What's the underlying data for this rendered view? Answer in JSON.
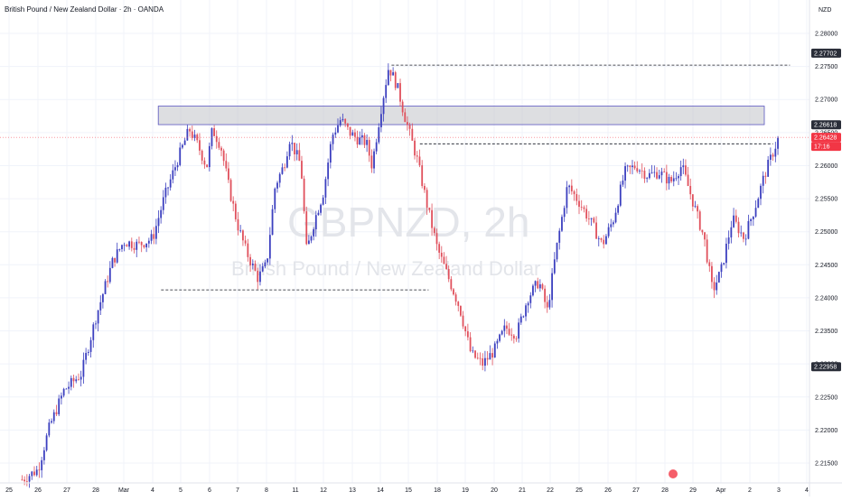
{
  "header": {
    "title": "British Pound / New Zealand Dollar · 2h · OANDA",
    "currency": "NZD"
  },
  "watermark": {
    "symbol": "GBPNZD, 2h",
    "name": "British Pound / New Zealand Dollar"
  },
  "colors": {
    "up": "#3b3fbf",
    "down": "#e0505c",
    "box_purple": "#7b74d0",
    "box_grey": "#bcbec4",
    "zone_grey": "#c9cbd1",
    "last_price": "#f23645",
    "tag_dark": "#131722"
  },
  "price_tags": {
    "box_top": "2.27702",
    "zone_bottom": "2.26618",
    "last_price": "2.26428",
    "countdown": "17:16",
    "box_bottom": "2.22958"
  },
  "chart_data": {
    "type": "candlestick",
    "title": "British Pound / New Zealand Dollar · 2h · OANDA",
    "y_axis": {
      "ylim": [
        2.2105,
        2.2855
      ],
      "ticks": [
        "2.28000",
        "2.27500",
        "2.27000",
        "2.26500",
        "2.26000",
        "2.25500",
        "2.25000",
        "2.24500",
        "2.24000",
        "2.23500",
        "2.23000",
        "2.22500",
        "2.22000",
        "2.21500"
      ]
    },
    "x_axis": {
      "ticks": [
        "25",
        "26",
        "27",
        "28",
        "Mar",
        "4",
        "5",
        "6",
        "7",
        "8",
        "11",
        "12",
        "13",
        "14",
        "15",
        "18",
        "19",
        "20",
        "21",
        "22",
        "25",
        "26",
        "27",
        "28",
        "29",
        "Apr",
        "2",
        "3",
        "4"
      ]
    },
    "price_path": [
      [
        0.45,
        2.2125
      ],
      [
        1.0,
        2.214
      ],
      [
        1.4,
        2.2205
      ],
      [
        1.9,
        2.226
      ],
      [
        2.5,
        2.2285
      ],
      [
        3.0,
        2.237
      ],
      [
        3.6,
        2.2455
      ],
      [
        4.0,
        2.2485
      ],
      [
        4.5,
        2.248
      ],
      [
        5.0,
        2.249
      ],
      [
        5.4,
        2.255
      ],
      [
        5.9,
        2.261
      ],
      [
        6.3,
        2.2655
      ],
      [
        6.6,
        2.263
      ],
      [
        6.9,
        2.2598
      ],
      [
        7.1,
        2.2655
      ],
      [
        7.4,
        2.263
      ],
      [
        7.7,
        2.2565
      ],
      [
        8.0,
        2.251
      ],
      [
        8.3,
        2.247
      ],
      [
        8.7,
        2.243
      ],
      [
        9.0,
        2.245
      ],
      [
        9.3,
        2.257
      ],
      [
        9.6,
        2.26
      ],
      [
        9.8,
        2.264
      ],
      [
        10.2,
        2.26
      ],
      [
        10.4,
        2.247
      ],
      [
        10.7,
        2.252
      ],
      [
        11.0,
        2.256
      ],
      [
        11.3,
        2.2645
      ],
      [
        11.6,
        2.267
      ],
      [
        11.9,
        2.265
      ],
      [
        12.2,
        2.264
      ],
      [
        12.5,
        2.2635
      ],
      [
        12.7,
        2.26
      ],
      [
        13.0,
        2.268
      ],
      [
        13.3,
        2.275
      ],
      [
        13.6,
        2.272
      ],
      [
        13.9,
        2.267
      ],
      [
        14.3,
        2.261
      ],
      [
        14.7,
        2.253
      ],
      [
        15.0,
        2.2475
      ],
      [
        15.4,
        2.243
      ],
      [
        15.8,
        2.2385
      ],
      [
        16.2,
        2.2315
      ],
      [
        16.6,
        2.23
      ],
      [
        17.0,
        2.232
      ],
      [
        17.4,
        2.2355
      ],
      [
        17.8,
        2.2345
      ],
      [
        18.2,
        2.24
      ],
      [
        18.6,
        2.2425
      ],
      [
        18.9,
        2.238
      ],
      [
        19.2,
        2.247
      ],
      [
        19.6,
        2.257
      ],
      [
        20.0,
        2.2545
      ],
      [
        20.4,
        2.2515
      ],
      [
        20.8,
        2.248
      ],
      [
        21.2,
        2.252
      ],
      [
        21.6,
        2.259
      ],
      [
        22.0,
        2.26
      ],
      [
        22.4,
        2.2585
      ],
      [
        22.8,
        2.259
      ],
      [
        23.2,
        2.2575
      ],
      [
        23.6,
        2.26
      ],
      [
        24.0,
        2.2545
      ],
      [
        24.4,
        2.249
      ],
      [
        24.7,
        2.241
      ],
      [
        25.0,
        2.244
      ],
      [
        25.4,
        2.252
      ],
      [
        25.8,
        2.249
      ],
      [
        26.2,
        2.254
      ],
      [
        26.5,
        2.2585
      ],
      [
        26.8,
        2.262
      ],
      [
        27.0,
        2.2643
      ]
    ]
  }
}
